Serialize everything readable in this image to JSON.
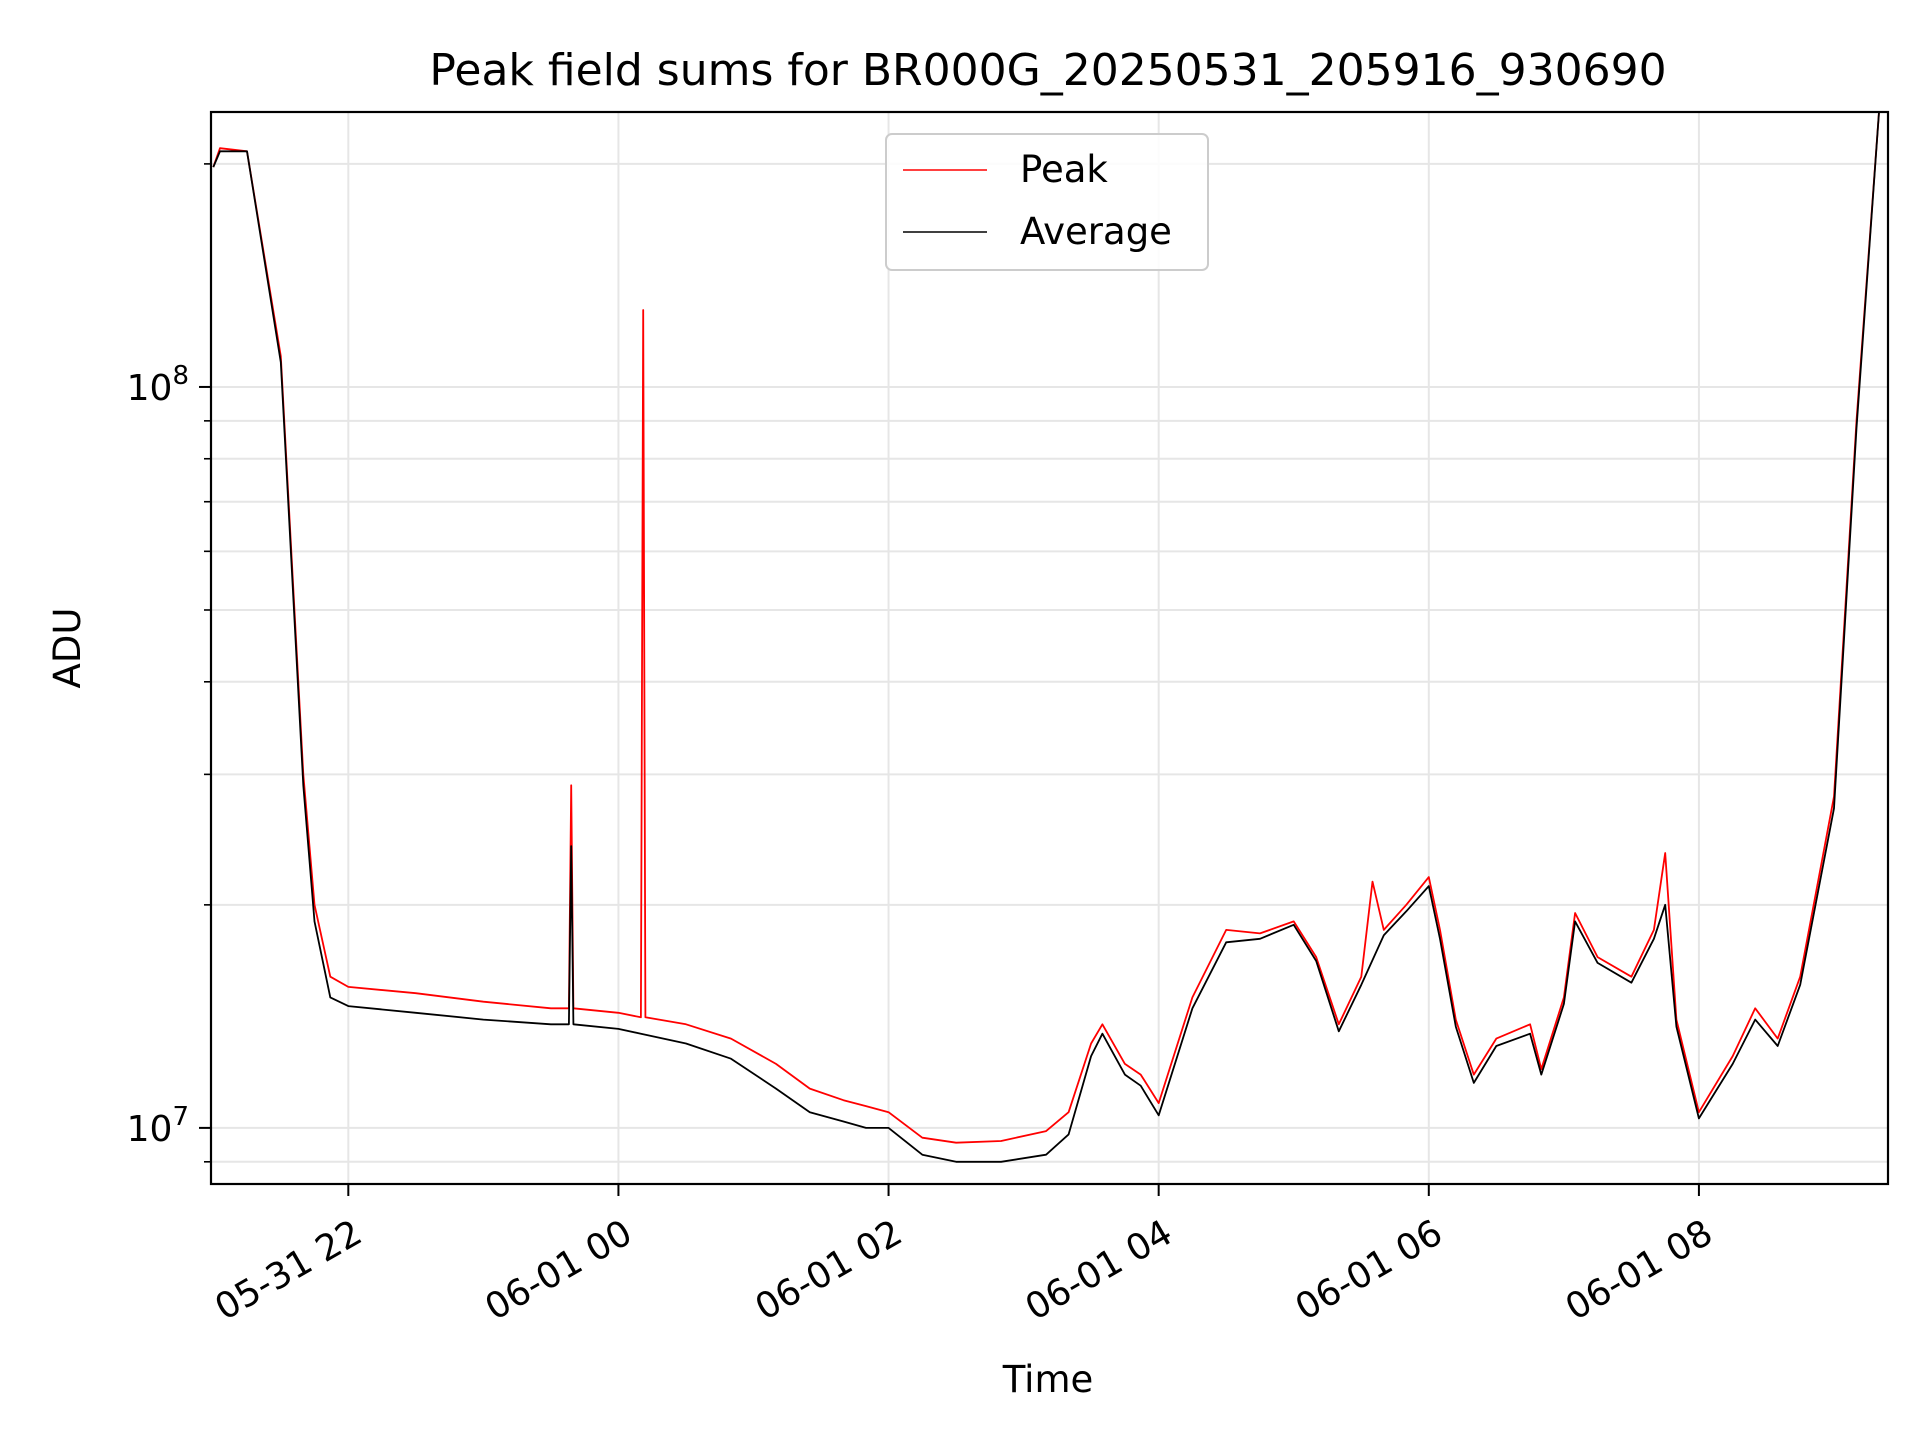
{
  "chart_data": {
    "type": "line",
    "title": "Peak field sums for BR000G_20250531_205916_930690",
    "xlabel": "Time",
    "ylabel": "ADU",
    "y_scale": "log",
    "ylim": [
      8400000,
      235000000
    ],
    "xlim": [
      "2025-05-31 20:59",
      "2025-06-01 09:24"
    ],
    "grid": true,
    "legend_position": "top-center",
    "x_tick_labels": [
      "05-31 22",
      "06-01 00",
      "06-01 02",
      "06-01 04",
      "06-01 06",
      "06-01 08"
    ],
    "x_ticks": [
      "2025-05-31 22:00",
      "2025-06-01 00:00",
      "2025-06-01 02:00",
      "2025-06-01 04:00",
      "2025-06-01 06:00",
      "2025-06-01 08:00"
    ],
    "y_tick_labels": [
      {
        "value": 10000000,
        "base": "10",
        "exponent": "7"
      },
      {
        "value": 100000000,
        "base": "10",
        "exponent": "8"
      }
    ],
    "series": [
      {
        "name": "Peak",
        "color": "#ff0000",
        "points": [
          [
            "2025-05-31 21:00",
            198000000
          ],
          [
            "2025-05-31 21:03",
            210000000
          ],
          [
            "2025-05-31 21:15",
            208000000
          ],
          [
            "2025-05-31 21:30",
            110000000
          ],
          [
            "2025-05-31 21:40",
            30000000
          ],
          [
            "2025-05-31 21:45",
            20000000
          ],
          [
            "2025-05-31 21:52",
            16000000
          ],
          [
            "2025-05-31 22:00",
            15500000
          ],
          [
            "2025-05-31 22:30",
            15200000
          ],
          [
            "2025-05-31 23:00",
            14800000
          ],
          [
            "2025-05-31 23:30",
            14500000
          ],
          [
            "2025-05-31 23:38",
            14500000
          ],
          [
            "2025-05-31 23:39",
            29000000
          ],
          [
            "2025-05-31 23:40",
            14500000
          ],
          [
            "2025-06-01 00:00",
            14300000
          ],
          [
            "2025-06-01 00:10",
            14100000
          ],
          [
            "2025-06-01 00:11",
            127000000
          ],
          [
            "2025-06-01 00:12",
            14100000
          ],
          [
            "2025-06-01 00:30",
            13800000
          ],
          [
            "2025-06-01 00:50",
            13200000
          ],
          [
            "2025-06-01 01:10",
            12200000
          ],
          [
            "2025-06-01 01:25",
            11300000
          ],
          [
            "2025-06-01 01:40",
            10900000
          ],
          [
            "2025-06-01 01:50",
            10700000
          ],
          [
            "2025-06-01 02:00",
            10500000
          ],
          [
            "2025-06-01 02:15",
            9700000
          ],
          [
            "2025-06-01 02:30",
            9550000
          ],
          [
            "2025-06-01 02:50",
            9600000
          ],
          [
            "2025-06-01 03:10",
            9900000
          ],
          [
            "2025-06-01 03:20",
            10500000
          ],
          [
            "2025-06-01 03:30",
            13000000
          ],
          [
            "2025-06-01 03:35",
            13800000
          ],
          [
            "2025-06-01 03:45",
            12200000
          ],
          [
            "2025-06-01 03:52",
            11800000
          ],
          [
            "2025-06-01 04:00",
            10800000
          ],
          [
            "2025-06-01 04:15",
            15000000
          ],
          [
            "2025-06-01 04:30",
            18500000
          ],
          [
            "2025-06-01 04:45",
            18300000
          ],
          [
            "2025-06-01 05:00",
            19000000
          ],
          [
            "2025-06-01 05:10",
            17000000
          ],
          [
            "2025-06-01 05:20",
            13800000
          ],
          [
            "2025-06-01 05:30",
            16000000
          ],
          [
            "2025-06-01 05:35",
            21500000
          ],
          [
            "2025-06-01 05:40",
            18500000
          ],
          [
            "2025-06-01 05:50",
            20000000
          ],
          [
            "2025-06-01 06:00",
            21800000
          ],
          [
            "2025-06-01 06:05",
            18500000
          ],
          [
            "2025-06-01 06:12",
            14000000
          ],
          [
            "2025-06-01 06:20",
            11800000
          ],
          [
            "2025-06-01 06:30",
            13200000
          ],
          [
            "2025-06-01 06:45",
            13800000
          ],
          [
            "2025-06-01 06:50",
            12000000
          ],
          [
            "2025-06-01 07:00",
            15000000
          ],
          [
            "2025-06-01 07:05",
            19500000
          ],
          [
            "2025-06-01 07:15",
            17000000
          ],
          [
            "2025-06-01 07:30",
            16000000
          ],
          [
            "2025-06-01 07:40",
            18500000
          ],
          [
            "2025-06-01 07:45",
            23500000
          ],
          [
            "2025-06-01 07:50",
            14000000
          ],
          [
            "2025-06-01 08:00",
            10500000
          ],
          [
            "2025-06-01 08:15",
            12500000
          ],
          [
            "2025-06-01 08:25",
            14500000
          ],
          [
            "2025-06-01 08:35",
            13200000
          ],
          [
            "2025-06-01 08:45",
            16000000
          ],
          [
            "2025-06-01 09:00",
            28000000
          ],
          [
            "2025-06-01 09:10",
            90000000
          ],
          [
            "2025-06-01 09:20",
            235000000
          ]
        ]
      },
      {
        "name": "Average",
        "color": "#000000",
        "points": [
          [
            "2025-05-31 21:00",
            198000000
          ],
          [
            "2025-05-31 21:03",
            208000000
          ],
          [
            "2025-05-31 21:15",
            208000000
          ],
          [
            "2025-05-31 21:30",
            108000000
          ],
          [
            "2025-05-31 21:40",
            29000000
          ],
          [
            "2025-05-31 21:45",
            19000000
          ],
          [
            "2025-05-31 21:52",
            15000000
          ],
          [
            "2025-05-31 22:00",
            14600000
          ],
          [
            "2025-05-31 22:30",
            14300000
          ],
          [
            "2025-05-31 23:00",
            14000000
          ],
          [
            "2025-05-31 23:30",
            13800000
          ],
          [
            "2025-05-31 23:38",
            13800000
          ],
          [
            "2025-05-31 23:39",
            24000000
          ],
          [
            "2025-05-31 23:40",
            13800000
          ],
          [
            "2025-06-01 00:00",
            13600000
          ],
          [
            "2025-06-01 00:10",
            13400000
          ],
          [
            "2025-06-01 00:30",
            13000000
          ],
          [
            "2025-06-01 00:50",
            12400000
          ],
          [
            "2025-06-01 01:10",
            11300000
          ],
          [
            "2025-06-01 01:25",
            10500000
          ],
          [
            "2025-06-01 01:40",
            10200000
          ],
          [
            "2025-06-01 01:50",
            10000000
          ],
          [
            "2025-06-01 02:00",
            10000000
          ],
          [
            "2025-06-01 02:15",
            9200000
          ],
          [
            "2025-06-01 02:30",
            9000000
          ],
          [
            "2025-06-01 02:50",
            9000000
          ],
          [
            "2025-06-01 03:10",
            9200000
          ],
          [
            "2025-06-01 03:20",
            9800000
          ],
          [
            "2025-06-01 03:30",
            12500000
          ],
          [
            "2025-06-01 03:35",
            13400000
          ],
          [
            "2025-06-01 03:45",
            11800000
          ],
          [
            "2025-06-01 03:52",
            11400000
          ],
          [
            "2025-06-01 04:00",
            10400000
          ],
          [
            "2025-06-01 04:15",
            14500000
          ],
          [
            "2025-06-01 04:30",
            17800000
          ],
          [
            "2025-06-01 04:45",
            18000000
          ],
          [
            "2025-06-01 05:00",
            18800000
          ],
          [
            "2025-06-01 05:10",
            16800000
          ],
          [
            "2025-06-01 05:20",
            13500000
          ],
          [
            "2025-06-01 05:30",
            15600000
          ],
          [
            "2025-06-01 05:40",
            18200000
          ],
          [
            "2025-06-01 05:50",
            19600000
          ],
          [
            "2025-06-01 06:00",
            21200000
          ],
          [
            "2025-06-01 06:05",
            18000000
          ],
          [
            "2025-06-01 06:12",
            13700000
          ],
          [
            "2025-06-01 06:20",
            11500000
          ],
          [
            "2025-06-01 06:30",
            12900000
          ],
          [
            "2025-06-01 06:45",
            13400000
          ],
          [
            "2025-06-01 06:50",
            11800000
          ],
          [
            "2025-06-01 07:00",
            14700000
          ],
          [
            "2025-06-01 07:05",
            19000000
          ],
          [
            "2025-06-01 07:15",
            16700000
          ],
          [
            "2025-06-01 07:30",
            15700000
          ],
          [
            "2025-06-01 07:40",
            18000000
          ],
          [
            "2025-06-01 07:45",
            20000000
          ],
          [
            "2025-06-01 07:50",
            13700000
          ],
          [
            "2025-06-01 08:00",
            10300000
          ],
          [
            "2025-06-01 08:15",
            12200000
          ],
          [
            "2025-06-01 08:25",
            14000000
          ],
          [
            "2025-06-01 08:35",
            12900000
          ],
          [
            "2025-06-01 08:45",
            15600000
          ],
          [
            "2025-06-01 09:00",
            27000000
          ],
          [
            "2025-06-01 09:10",
            88000000
          ],
          [
            "2025-06-01 09:20",
            235000000
          ]
        ]
      }
    ]
  }
}
